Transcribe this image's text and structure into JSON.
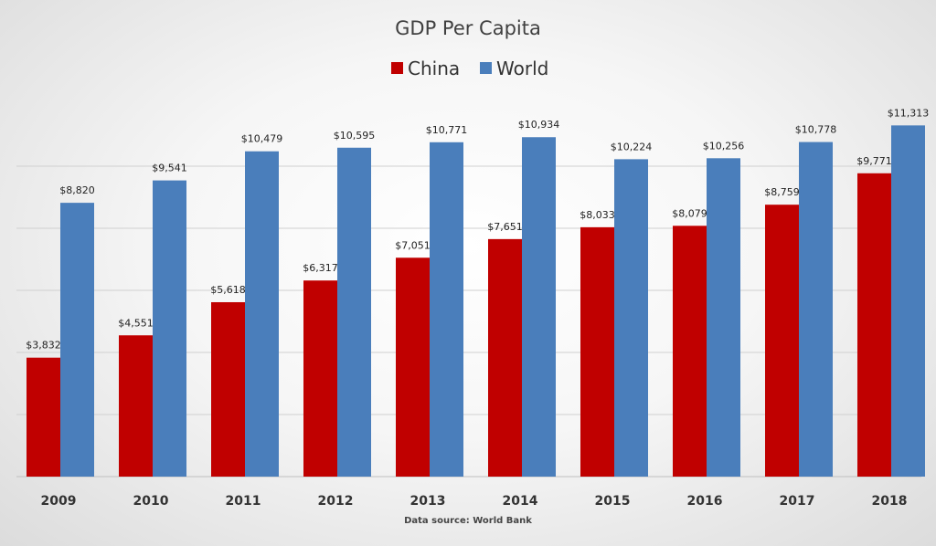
{
  "chart_data": {
    "type": "bar",
    "title": "GDP Per Capita",
    "categories": [
      "2009",
      "2010",
      "2011",
      "2012",
      "2013",
      "2014",
      "2015",
      "2016",
      "2017",
      "2018"
    ],
    "series": [
      {
        "name": "China",
        "color": "#c00000",
        "values": [
          3832,
          4551,
          5618,
          6317,
          7051,
          7651,
          8033,
          8079,
          8759,
          9771
        ],
        "labels": [
          "$3,832",
          "$4,551",
          "$5,618",
          "$6,317",
          "$7,051",
          "$7,651",
          "$8,033",
          "$8,079",
          "$8,759",
          "$9,771"
        ]
      },
      {
        "name": "World",
        "color": "#4a7ebb",
        "values": [
          8820,
          9541,
          10479,
          10595,
          10771,
          10934,
          10224,
          10256,
          10778,
          11313
        ],
        "labels": [
          "$8,820",
          "$9,541",
          "$10,479",
          "$10,595",
          "$10,771",
          "$10,934",
          "$10,224",
          "$10,256",
          "$10,778",
          "$11,313"
        ]
      }
    ],
    "xlabel": "",
    "ylabel": "",
    "ylim": [
      0,
      12000
    ],
    "grid_step": 2000,
    "grid": true,
    "legend_position": "top-center",
    "source": "Data source:  World  Bank"
  }
}
